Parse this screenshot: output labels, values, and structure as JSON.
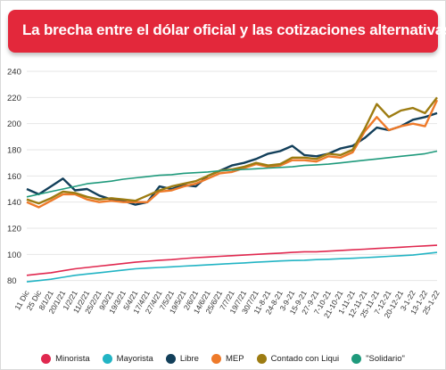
{
  "header": {
    "title": "La brecha entre el dólar oficial y las cotizaciones alternativas"
  },
  "chart_data": {
    "type": "line",
    "title": "La brecha entre el dólar oficial y las cotizaciones alternativas",
    "xlabel": "",
    "ylabel": "",
    "ylim": [
      75,
      240
    ],
    "yticks": [
      80,
      100,
      120,
      140,
      160,
      180,
      200,
      220,
      240
    ],
    "grid": true,
    "legend_position": "bottom",
    "x_tick_labels": [
      "11 Dic",
      "25 Dic",
      "8/1/21",
      "20/1/21",
      "1/2/21",
      "11/2/21",
      "25/2/21",
      "9/3/21",
      "19/3/21",
      "5/4/21",
      "17/4/21",
      "27/4/21",
      "7/5/21",
      "19/5/21",
      "2/6/21",
      "14/6/21",
      "25/6/21",
      "7/7/21",
      "19/7/21",
      "30/7/21",
      "11-8-21",
      "24-8-21",
      "3-9-21",
      "15-9-21",
      "27-9-21",
      "7-10-21",
      "21-10-21",
      "1-11-21",
      "12-11-21",
      "25-11-21",
      "7-12-21",
      "20-12-21",
      "3-1-22",
      "13-1-22",
      "25-1-22"
    ],
    "series": [
      {
        "name": "Minorista",
        "color": "#e0284f",
        "values": [
          84,
          85,
          86,
          87.5,
          89,
          90,
          91,
          92,
          93,
          94,
          94.8,
          95.5,
          96,
          96.8,
          97.5,
          98,
          98.5,
          99,
          99.5,
          100,
          100.5,
          101,
          101.5,
          102,
          102,
          102.5,
          103,
          103.5,
          104,
          104.5,
          105,
          105.5,
          106,
          106.5,
          107
        ]
      },
      {
        "name": "Mayorista",
        "color": "#22b4c4",
        "values": [
          79,
          80,
          81,
          82.5,
          84,
          85,
          86,
          87,
          88,
          89,
          89.5,
          90,
          90.5,
          91,
          91.5,
          92,
          92.5,
          93,
          93.5,
          94,
          94.5,
          95,
          95.3,
          95.5,
          96,
          96.3,
          96.7,
          97,
          97.5,
          98,
          98.5,
          99,
          99.5,
          100.5,
          101.5
        ]
      },
      {
        "name": "Libre",
        "color": "#123f5a",
        "values": [
          150,
          146,
          152,
          158,
          149,
          150,
          145,
          142,
          141,
          138,
          140,
          152,
          150,
          153,
          152,
          160,
          164,
          168,
          170,
          173,
          177,
          179,
          183,
          176,
          175,
          177,
          181,
          183,
          189,
          197,
          195,
          198,
          203,
          205,
          208
        ]
      },
      {
        "name": "MEP",
        "color": "#ee7a2a",
        "values": [
          140,
          136,
          141,
          146,
          146,
          142,
          140,
          141,
          140,
          140,
          140,
          148,
          149,
          152,
          154,
          158,
          162,
          163,
          166,
          169,
          167,
          168,
          172,
          172,
          171,
          175,
          174,
          178,
          194,
          205,
          195,
          198,
          200,
          198,
          218
        ]
      },
      {
        "name": "Contado con Liqui",
        "color": "#9d7c12",
        "values": [
          142,
          139,
          143,
          148,
          147,
          144,
          142,
          143,
          142,
          141,
          145,
          149,
          152,
          154,
          156,
          160,
          164,
          165,
          167,
          170,
          168,
          169,
          174,
          174,
          173,
          177,
          176,
          180,
          196,
          215,
          205,
          210,
          212,
          208,
          220
        ]
      },
      {
        "name": "\"Solidario\"",
        "color": "#1f9a7c",
        "values": [
          144,
          146,
          148,
          150,
          152,
          154,
          155,
          156,
          157.5,
          158.5,
          159.5,
          160.5,
          161,
          162,
          162.5,
          163,
          164,
          164.5,
          165,
          165.5,
          166,
          166.5,
          167,
          168,
          168.5,
          169,
          170,
          171,
          172,
          173,
          174,
          175,
          176,
          177,
          179
        ]
      }
    ]
  }
}
